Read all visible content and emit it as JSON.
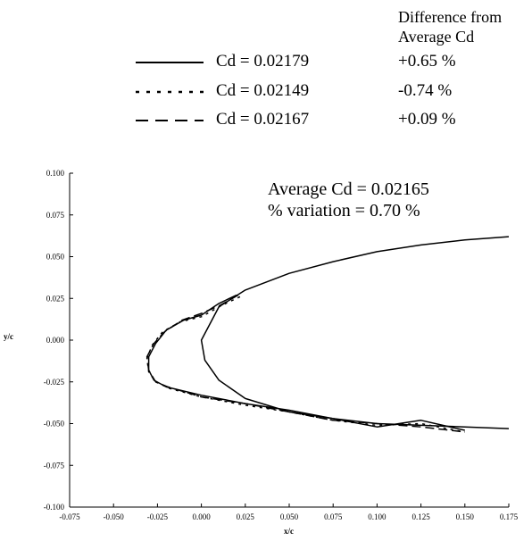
{
  "legend": {
    "header": "Difference from Average Cd",
    "header_line1": "Difference from",
    "header_line2": "Average Cd",
    "entries": [
      {
        "label": "Cd = 0.02179",
        "diff": "+0.65 %",
        "style": "solid"
      },
      {
        "label": "Cd = 0.02149",
        "diff": "-0.74 %",
        "style": "dotted"
      },
      {
        "label": "Cd = 0.02167",
        "diff": "+0.09 %",
        "style": "dashed"
      }
    ]
  },
  "annotation": {
    "average": "Average Cd = 0.02165",
    "variation": "% variation  = 0.70 %"
  },
  "chart_data": {
    "type": "line",
    "xlabel": "x/c",
    "ylabel": "y/c",
    "xlim": [
      -0.075,
      0.175
    ],
    "ylim": [
      -0.1,
      0.1
    ],
    "x_ticks": [
      "-0.075",
      "-0.050",
      "-0.025",
      "0.000",
      "0.025",
      "0.050",
      "0.075",
      "0.100",
      "0.125",
      "0.150",
      "0.175"
    ],
    "y_ticks": [
      "0.100",
      "0.075",
      "0.050",
      "0.025",
      "0.000",
      "-0.025",
      "-0.050",
      "-0.075",
      "-0.100"
    ],
    "series": [
      {
        "style": "solid",
        "x": [
          0.175,
          0.15,
          0.125,
          0.1,
          0.075,
          0.05,
          0.025,
          0.01,
          0.0,
          0.002,
          0.01,
          0.025,
          0.05,
          0.075,
          0.1,
          0.125,
          0.15,
          0.175
        ],
        "y": [
          0.062,
          0.06,
          0.057,
          0.053,
          0.047,
          0.04,
          0.03,
          0.02,
          0.0,
          -0.012,
          -0.024,
          -0.035,
          -0.043,
          -0.047,
          -0.05,
          -0.051,
          -0.052,
          -0.053
        ]
      },
      {
        "style": "solid",
        "x": [
          0.02,
          0.01,
          0.0,
          -0.01,
          -0.02,
          -0.026,
          -0.03,
          -0.03,
          -0.027,
          -0.02,
          0.0,
          0.025,
          0.05,
          0.075,
          0.1,
          0.125,
          0.15
        ],
        "y": [
          0.027,
          0.022,
          0.015,
          0.012,
          0.006,
          -0.002,
          -0.01,
          -0.018,
          -0.024,
          -0.028,
          -0.033,
          -0.038,
          -0.042,
          -0.047,
          -0.052,
          -0.048,
          -0.054
        ]
      },
      {
        "style": "dotted",
        "x": [
          0.022,
          0.012,
          0.0,
          -0.012,
          -0.022,
          -0.028,
          -0.031,
          -0.03,
          -0.026,
          -0.018,
          0.0,
          0.025,
          0.05,
          0.075,
          0.1,
          0.125,
          0.15
        ],
        "y": [
          0.026,
          0.021,
          0.014,
          0.011,
          0.005,
          -0.003,
          -0.011,
          -0.019,
          -0.025,
          -0.029,
          -0.034,
          -0.039,
          -0.043,
          -0.048,
          -0.051,
          -0.05,
          -0.055
        ]
      },
      {
        "style": "dashed",
        "x": [
          0.021,
          0.011,
          0.0,
          -0.011,
          -0.021,
          -0.027,
          -0.031,
          -0.03,
          -0.026,
          -0.019,
          0.0,
          0.025,
          0.05,
          0.075,
          0.1,
          0.125,
          0.15
        ],
        "y": [
          0.027,
          0.021,
          0.016,
          0.012,
          0.005,
          -0.002,
          -0.01,
          -0.018,
          -0.025,
          -0.028,
          -0.034,
          -0.038,
          -0.043,
          -0.048,
          -0.05,
          -0.052,
          -0.055
        ]
      }
    ]
  }
}
